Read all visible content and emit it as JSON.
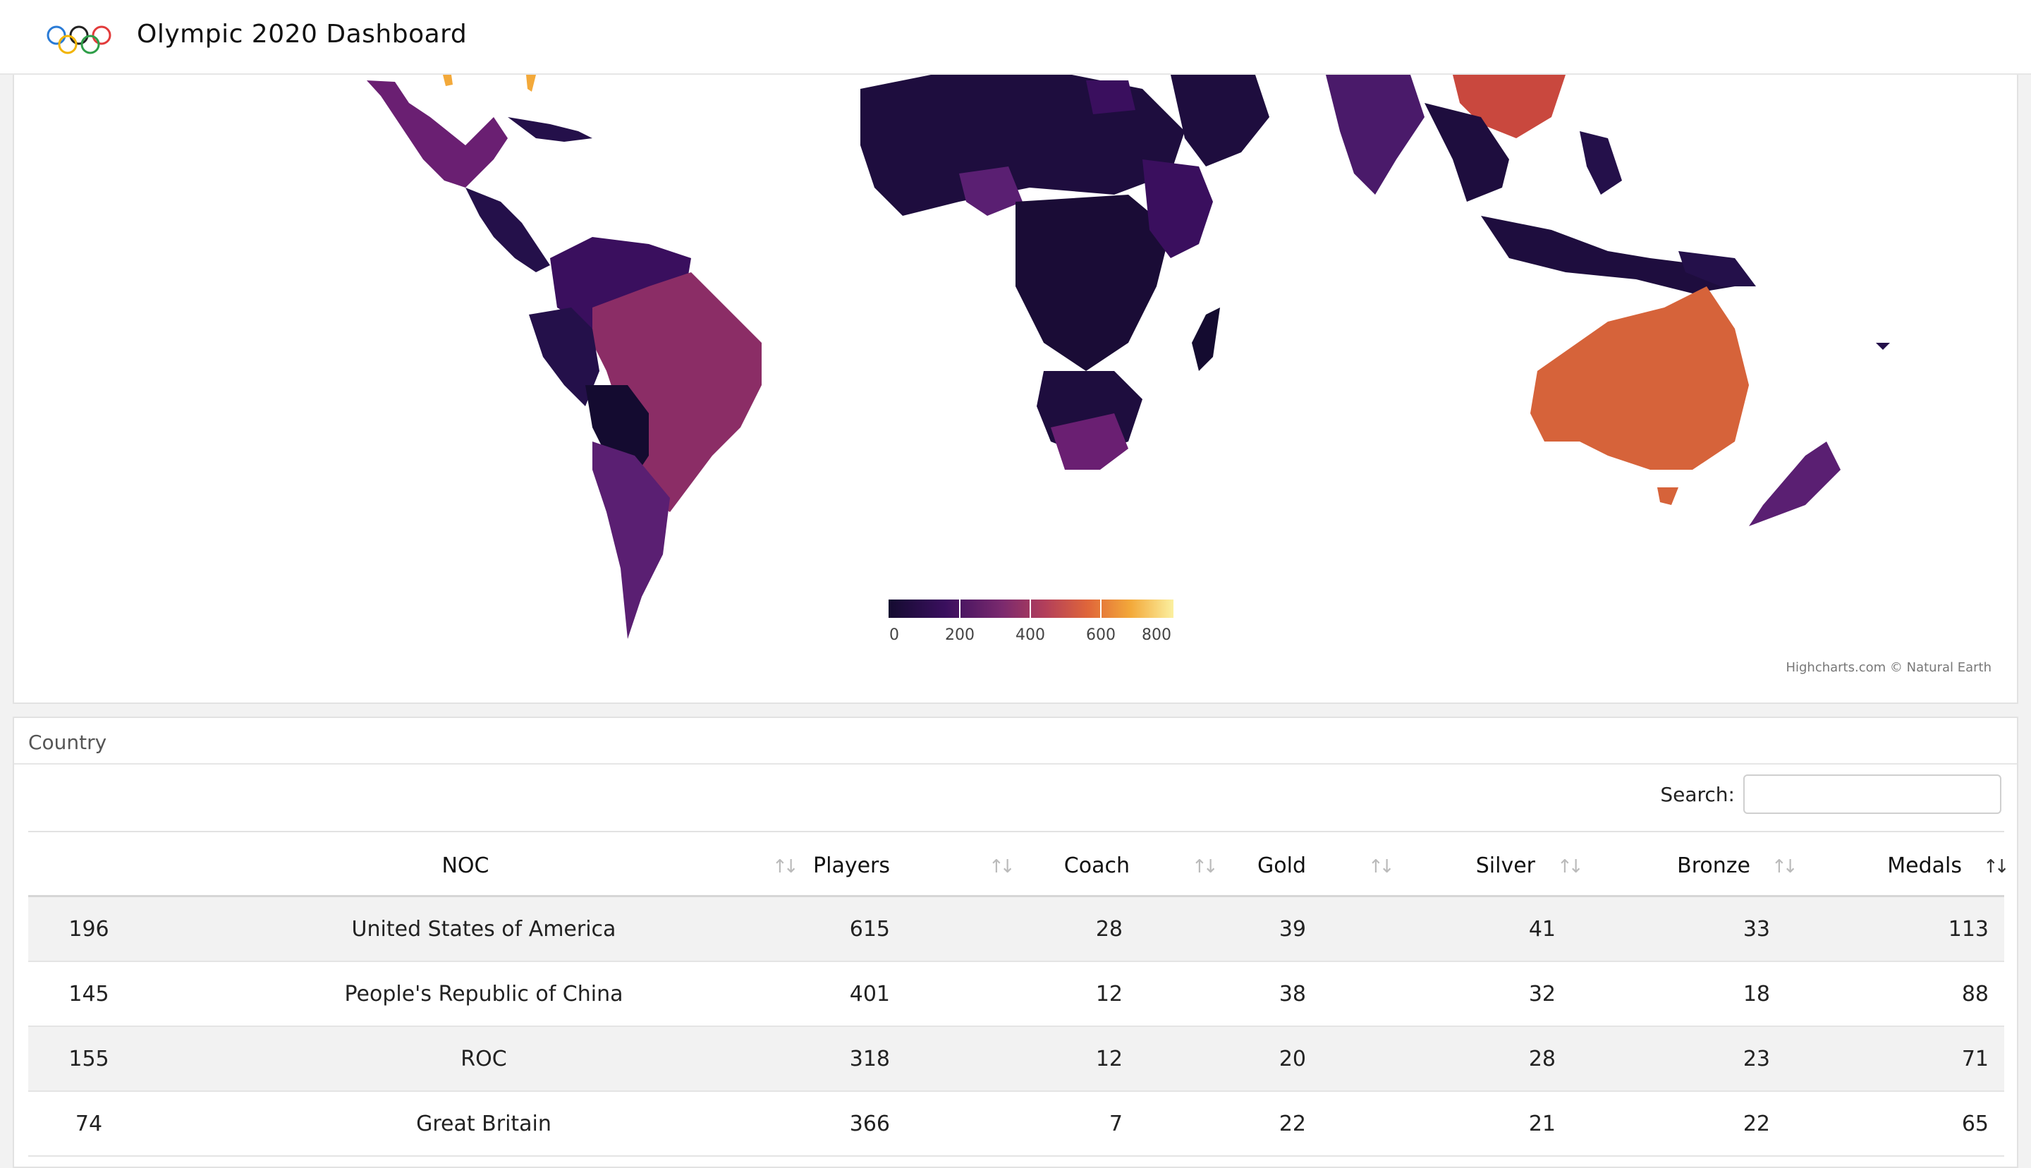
{
  "header": {
    "title": "Olympic 2020 Dashboard",
    "logo_icon": "olympic-rings-icon"
  },
  "map": {
    "legend_ticks": [
      "0",
      "200",
      "400",
      "600",
      "800"
    ],
    "legend_colors": [
      "#140b30",
      "#3a0f5e",
      "#7b2a6e",
      "#e0663a",
      "#fbf0a0"
    ],
    "credits": "Highcharts.com © Natural Earth"
  },
  "table_card": {
    "title": "Country",
    "search_label": "Search:",
    "search_value": "",
    "columns": [
      "",
      "NOC",
      "Players",
      "Coach",
      "Gold",
      "Silver",
      "Bronze",
      "Medals"
    ],
    "sort_active": "Medals",
    "rows": [
      {
        "id": "196",
        "noc": "United States of America",
        "players": "615",
        "coach": "28",
        "gold": "39",
        "silver": "41",
        "bronze": "33",
        "medals": "113"
      },
      {
        "id": "145",
        "noc": "People's Republic of China",
        "players": "401",
        "coach": "12",
        "gold": "38",
        "silver": "32",
        "bronze": "18",
        "medals": "88"
      },
      {
        "id": "155",
        "noc": "ROC",
        "players": "318",
        "coach": "12",
        "gold": "20",
        "silver": "28",
        "bronze": "23",
        "medals": "71"
      },
      {
        "id": "74",
        "noc": "Great Britain",
        "players": "366",
        "coach": "7",
        "gold": "22",
        "silver": "21",
        "bronze": "22",
        "medals": "65"
      }
    ]
  }
}
